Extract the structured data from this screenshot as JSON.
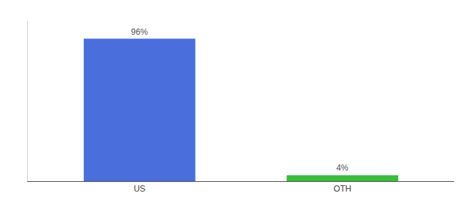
{
  "chart_data": {
    "type": "bar",
    "categories": [
      "US",
      "OTH"
    ],
    "values": [
      96,
      4
    ],
    "value_labels": [
      "96%",
      "4%"
    ],
    "colors": [
      "#4a6fdc",
      "#3dbb3d"
    ],
    "ylim": [
      0,
      108
    ],
    "yticks": [],
    "grid": false,
    "data_labels": true,
    "tick_labels": "x"
  }
}
